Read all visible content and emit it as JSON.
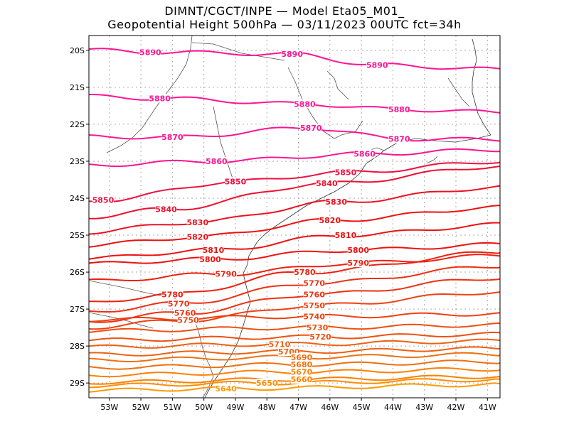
{
  "title": {
    "line1": "DIMNT/CGCT/INPE —  Model Eta05_M01_",
    "line2": "Geopotential Height 500hPa —  03/11/2023 00UTC fct=34h"
  },
  "axes": {
    "lat_labels": [
      "20S",
      "21S",
      "22S",
      "23S",
      "24S",
      "25S",
      "26S",
      "27S",
      "28S",
      "29S"
    ],
    "lon_labels": [
      "53W",
      "52W",
      "51W",
      "50W",
      "49W",
      "48W",
      "47W",
      "46W",
      "45W",
      "44W",
      "43W",
      "42W",
      "41W"
    ]
  },
  "contour_colors": {
    "high": "#ff1493",
    "mid": "#ee1010",
    "low": "#ff8c00"
  },
  "contours": [
    {
      "value": 5890,
      "color": "#ff1493",
      "labels": [
        {
          "text": "5890",
          "lon": -51.7,
          "lat": -20.05
        },
        {
          "text": "5890",
          "lon": -47.2,
          "lat": -20.1
        },
        {
          "text": "5890",
          "lon": -44.5,
          "lat": -20.4
        }
      ]
    },
    {
      "value": 5880,
      "color": "#ff1493",
      "labels": [
        {
          "text": "5880",
          "lon": -51.4,
          "lat": -21.3
        },
        {
          "text": "5880",
          "lon": -46.8,
          "lat": -21.45
        },
        {
          "text": "5880",
          "lon": -43.8,
          "lat": -21.6
        }
      ]
    },
    {
      "value": 5870,
      "color": "#ff1493",
      "labels": [
        {
          "text": "5870",
          "lon": -51.0,
          "lat": -22.35
        },
        {
          "text": "5870",
          "lon": -46.6,
          "lat": -22.1
        },
        {
          "text": "5870",
          "lon": -43.8,
          "lat": -22.4
        }
      ]
    },
    {
      "value": 5860,
      "color": "#ff1493",
      "labels": [
        {
          "text": "5860",
          "lon": -49.6,
          "lat": -23.0
        },
        {
          "text": "5860",
          "lon": -44.9,
          "lat": -22.8
        }
      ]
    },
    {
      "value": 5850,
      "color": "#ee1040",
      "labels": [
        {
          "text": "5850",
          "lon": -53.2,
          "lat": -24.05
        },
        {
          "text": "5850",
          "lon": -49.0,
          "lat": -23.55
        },
        {
          "text": "5850",
          "lon": -45.5,
          "lat": -23.3
        }
      ]
    },
    {
      "value": 5840,
      "color": "#ee1030",
      "labels": [
        {
          "text": "5840",
          "lon": -51.2,
          "lat": -24.3
        },
        {
          "text": "5840",
          "lon": -46.1,
          "lat": -23.6
        }
      ]
    },
    {
      "value": 5830,
      "color": "#ee1020",
      "labels": [
        {
          "text": "5830",
          "lon": -50.2,
          "lat": -24.65
        },
        {
          "text": "5830",
          "lon": -45.8,
          "lat": -24.1
        }
      ]
    },
    {
      "value": 5820,
      "color": "#ee1010",
      "labels": [
        {
          "text": "5820",
          "lon": -50.2,
          "lat": -25.05
        },
        {
          "text": "5820",
          "lon": -46.0,
          "lat": -24.6
        }
      ]
    },
    {
      "value": 5810,
      "color": "#ee1010",
      "labels": [
        {
          "text": "5810",
          "lon": -49.7,
          "lat": -25.4
        },
        {
          "text": "5810",
          "lon": -45.5,
          "lat": -25.0
        }
      ]
    },
    {
      "value": 5800,
      "color": "#ee1010",
      "labels": [
        {
          "text": "5800",
          "lon": -49.8,
          "lat": -25.65
        },
        {
          "text": "5800",
          "lon": -45.1,
          "lat": -25.4
        }
      ]
    },
    {
      "value": 5790,
      "color": "#ee2010",
      "labels": [
        {
          "text": "5790",
          "lon": -49.3,
          "lat": -26.05
        },
        {
          "text": "5790",
          "lon": -45.1,
          "lat": -25.75
        }
      ]
    },
    {
      "value": 5780,
      "color": "#ee2010",
      "labels": [
        {
          "text": "5780",
          "lon": -51.0,
          "lat": -26.6
        },
        {
          "text": "5780",
          "lon": -46.8,
          "lat": -26.0
        }
      ]
    },
    {
      "value": 5770,
      "color": "#ee3010",
      "labels": [
        {
          "text": "5770",
          "lon": -50.8,
          "lat": -26.85
        },
        {
          "text": "5770",
          "lon": -46.5,
          "lat": -26.3
        }
      ]
    },
    {
      "value": 5760,
      "color": "#ee3010",
      "labels": [
        {
          "text": "5760",
          "lon": -50.6,
          "lat": -27.1
        },
        {
          "text": "5760",
          "lon": -46.5,
          "lat": -26.6
        }
      ]
    },
    {
      "value": 5750,
      "color": "#ee4010",
      "labels": [
        {
          "text": "5750",
          "lon": -50.5,
          "lat": -27.3
        },
        {
          "text": "5750",
          "lon": -46.5,
          "lat": -26.9
        }
      ]
    },
    {
      "value": 5740,
      "color": "#ee4010",
      "labels": [
        {
          "text": "5740",
          "lon": -46.5,
          "lat": -27.2
        }
      ]
    },
    {
      "value": 5730,
      "color": "#ee5010",
      "labels": [
        {
          "text": "5730",
          "lon": -46.4,
          "lat": -27.5
        }
      ]
    },
    {
      "value": 5720,
      "color": "#ee5010",
      "labels": [
        {
          "text": "5720",
          "lon": -46.3,
          "lat": -27.75
        }
      ]
    },
    {
      "value": 5710,
      "color": "#ee6010",
      "labels": [
        {
          "text": "5710",
          "lon": -47.6,
          "lat": -27.95
        }
      ]
    },
    {
      "value": 5700,
      "color": "#ee6010",
      "labels": [
        {
          "text": "5700",
          "lon": -47.3,
          "lat": -28.15
        }
      ]
    },
    {
      "value": 5690,
      "color": "#ee7010",
      "labels": [
        {
          "text": "5690",
          "lon": -46.9,
          "lat": -28.3
        }
      ]
    },
    {
      "value": 5680,
      "color": "#ee7010",
      "labels": [
        {
          "text": "5680",
          "lon": -46.9,
          "lat": -28.5
        }
      ]
    },
    {
      "value": 5670,
      "color": "#ff8000",
      "labels": [
        {
          "text": "5670",
          "lon": -46.9,
          "lat": -28.7
        }
      ]
    },
    {
      "value": 5660,
      "color": "#ff8000",
      "labels": [
        {
          "text": "5660",
          "lon": -46.9,
          "lat": -28.9
        }
      ]
    },
    {
      "value": 5650,
      "color": "#ff8c00",
      "labels": [
        {
          "text": "5650",
          "lon": -48.0,
          "lat": -29.0
        }
      ]
    },
    {
      "value": 5640,
      "color": "#ff9900",
      "labels": [
        {
          "text": "5640",
          "lon": -49.3,
          "lat": -29.15
        }
      ]
    }
  ]
}
